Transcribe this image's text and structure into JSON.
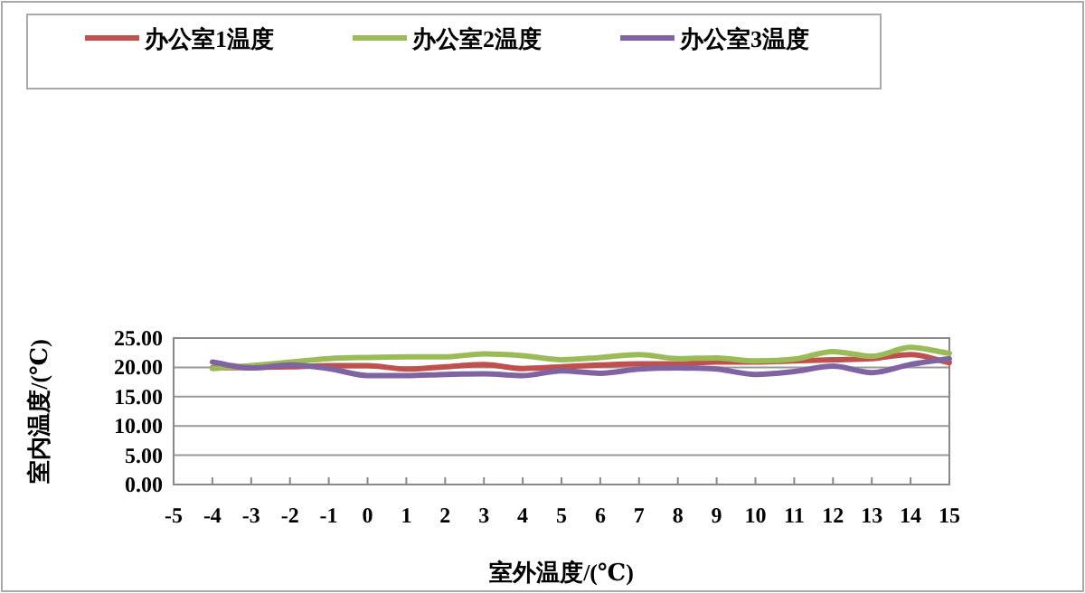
{
  "chart_data": {
    "type": "line",
    "xlabel": "室外温度/(℃)",
    "ylabel": "室内温度/(℃)",
    "x": [
      -4,
      -3,
      -2,
      -1,
      0,
      1,
      2,
      3,
      4,
      5,
      6,
      7,
      8,
      9,
      10,
      11,
      12,
      13,
      14,
      15
    ],
    "series": [
      {
        "name": "办公室1温度",
        "color": "#c0504d",
        "values": [
          19.9,
          20.0,
          20.1,
          20.3,
          20.3,
          19.7,
          20.1,
          20.5,
          19.8,
          20.1,
          20.4,
          20.6,
          20.6,
          20.9,
          20.9,
          21.1,
          21.3,
          21.5,
          22.2,
          20.8
        ]
      },
      {
        "name": "办公室2温度",
        "color": "#9bbb59",
        "values": [
          19.8,
          20.3,
          20.9,
          21.5,
          21.7,
          21.8,
          21.8,
          22.3,
          22.0,
          21.3,
          21.7,
          22.2,
          21.5,
          21.6,
          21.1,
          21.4,
          22.7,
          21.9,
          23.4,
          22.4
        ]
      },
      {
        "name": "办公室3温度",
        "color": "#8064a2",
        "values": [
          20.9,
          19.9,
          20.4,
          19.8,
          18.6,
          18.6,
          18.8,
          18.9,
          18.6,
          19.4,
          19.0,
          19.7,
          19.9,
          19.7,
          18.8,
          19.3,
          20.2,
          19.1,
          20.5,
          21.5
        ]
      }
    ],
    "xlim": [
      -5,
      15
    ],
    "xticks": [
      -5,
      -4,
      -3,
      -2,
      -1,
      0,
      1,
      2,
      3,
      4,
      5,
      6,
      7,
      8,
      9,
      10,
      11,
      12,
      13,
      14,
      15
    ],
    "ylim": [
      0,
      25
    ],
    "yticks": [
      {
        "value": 0,
        "label": "0.00"
      },
      {
        "value": 5,
        "label": "5.00"
      },
      {
        "value": 10,
        "label": "10.00"
      },
      {
        "value": 15,
        "label": "15.00"
      },
      {
        "value": 20,
        "label": "20.00"
      },
      {
        "value": 25,
        "label": "25.00"
      }
    ],
    "grid": "y",
    "legend": "top",
    "marker": "none",
    "line_style": "solid"
  }
}
